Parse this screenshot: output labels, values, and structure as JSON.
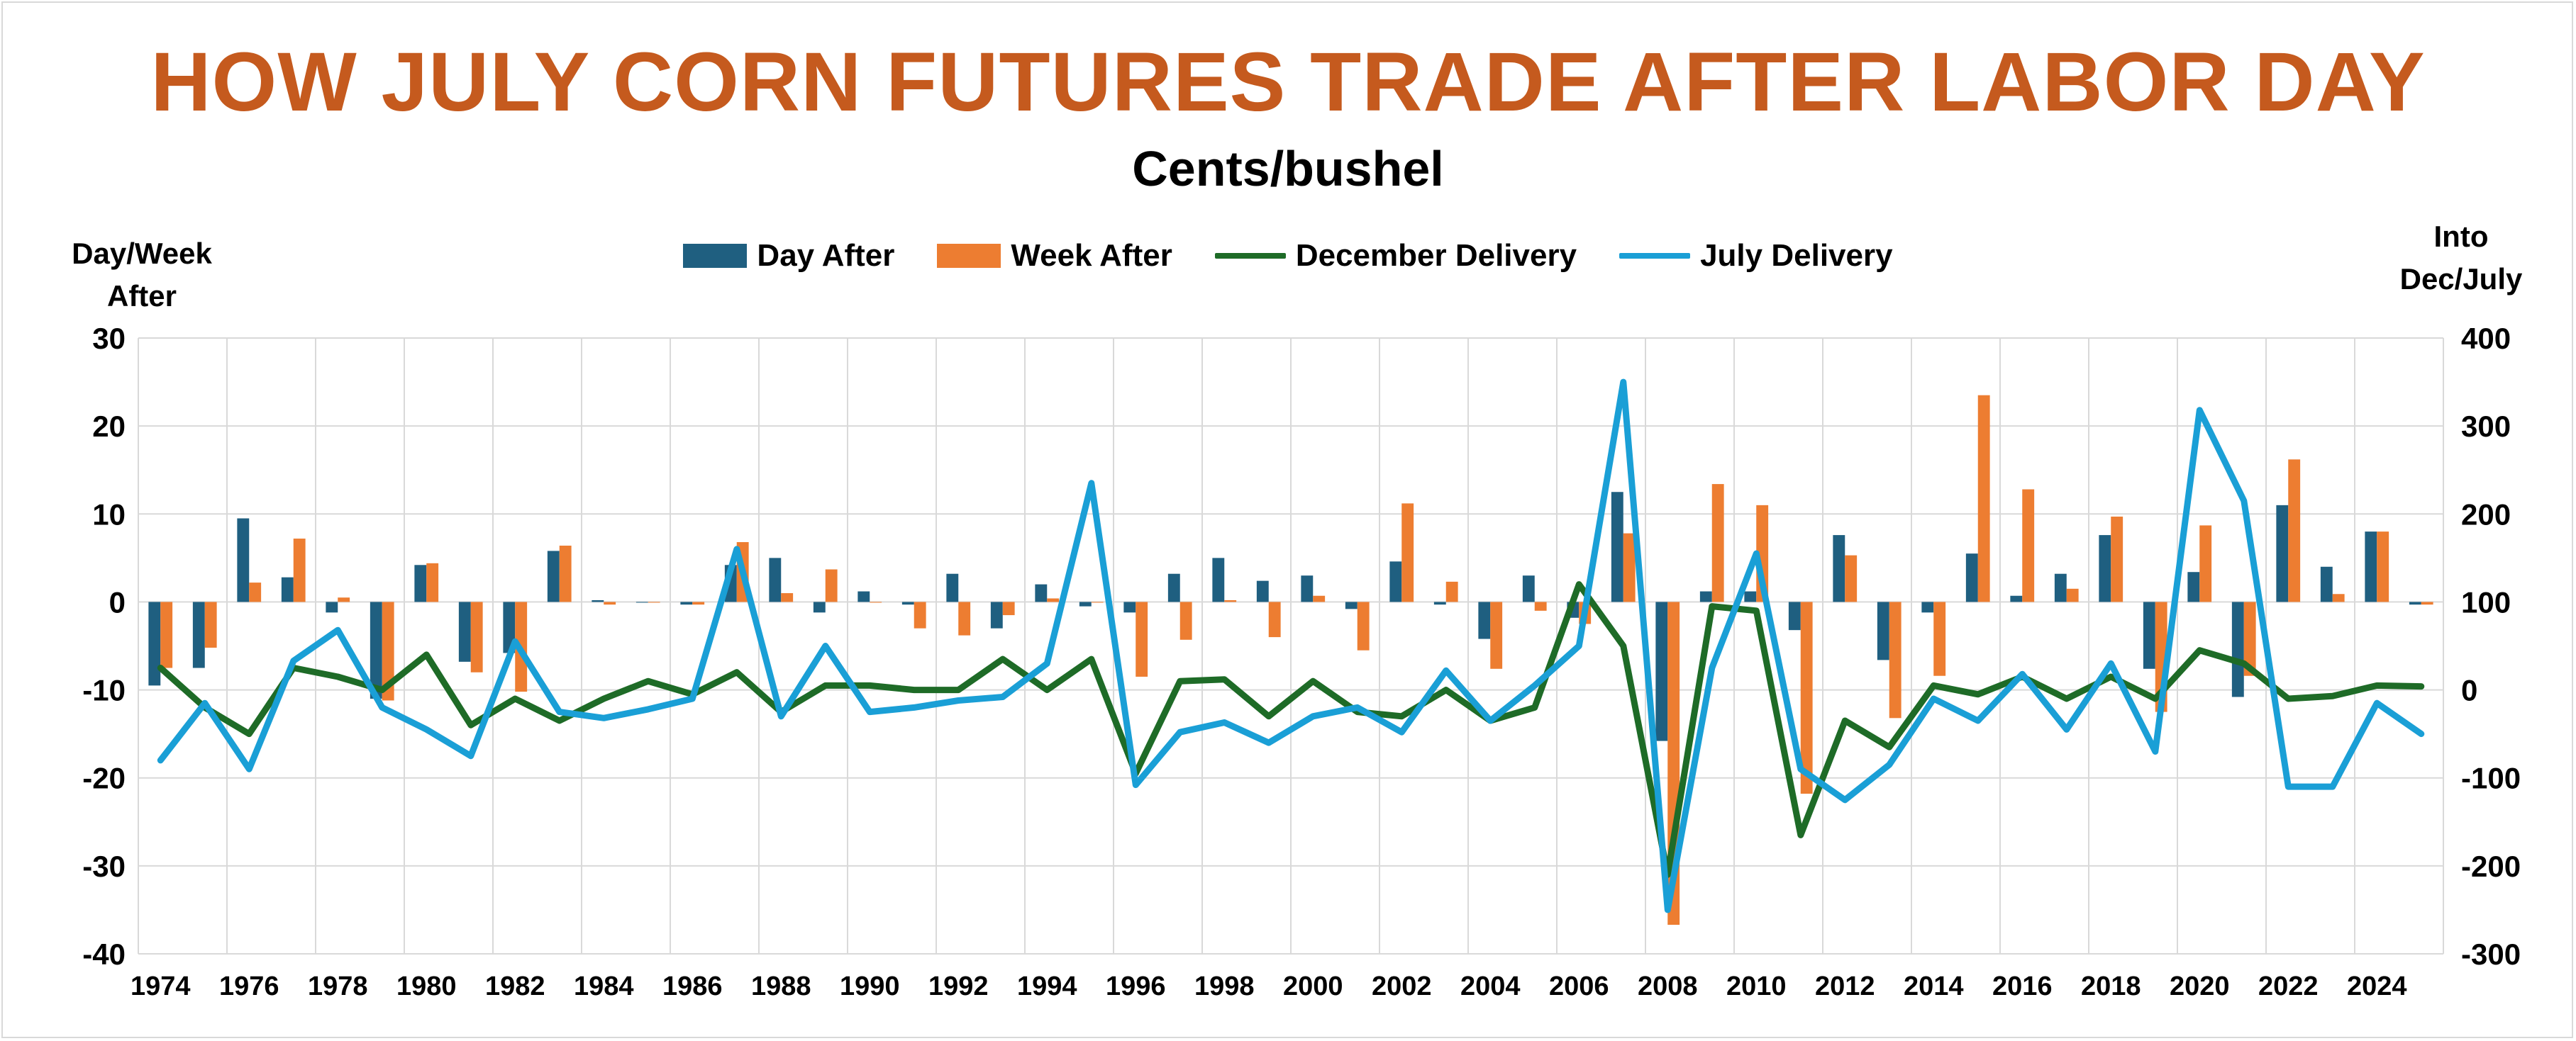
{
  "chart_data": {
    "type": "bar",
    "title": "HOW JULY CORN FUTURES TRADE AFTER LABOR DAY",
    "subtitle": "Cents/bushel",
    "ylabel_left": "Day/Week After",
    "ylabel_right": "Into Dec/July",
    "ylim_left": [
      -40,
      30
    ],
    "ylim_right": [
      -300,
      400
    ],
    "yticks_left": [
      30,
      20,
      10,
      0,
      -10,
      -20,
      -30,
      -40
    ],
    "yticks_right": [
      400,
      300,
      200,
      100,
      0,
      -100,
      -200,
      -300
    ],
    "grid": true,
    "legend_position": "top",
    "x": [
      1974,
      1975,
      1976,
      1977,
      1978,
      1979,
      1980,
      1981,
      1982,
      1983,
      1984,
      1985,
      1986,
      1987,
      1988,
      1989,
      1990,
      1991,
      1992,
      1993,
      1994,
      1995,
      1996,
      1997,
      1998,
      1999,
      2000,
      2001,
      2002,
      2003,
      2004,
      2005,
      2006,
      2007,
      2008,
      2009,
      2010,
      2011,
      2012,
      2013,
      2014,
      2015,
      2016,
      2017,
      2018,
      2019,
      2020,
      2021,
      2022,
      2023,
      2024,
      2025
    ],
    "xtick_labels": [
      "1974",
      "1976",
      "1978",
      "1980",
      "1982",
      "1984",
      "1986",
      "1988",
      "1990",
      "1992",
      "1994",
      "1996",
      "1998",
      "2000",
      "2002",
      "2004",
      "2006",
      "2008",
      "2010",
      "2012",
      "2014",
      "2016",
      "2018",
      "2020",
      "2022",
      "2024"
    ],
    "series": [
      {
        "name": "Day After",
        "type": "bar",
        "axis": "left",
        "color": "#1f5f80",
        "values": [
          -9.5,
          -7.5,
          9.5,
          2.8,
          -1.2,
          -11,
          4.2,
          -6.8,
          -5.8,
          5.8,
          0.2,
          0,
          -0.3,
          4.2,
          5,
          -1.2,
          1.2,
          -0.3,
          3.2,
          -3,
          2,
          -0.5,
          -1.2,
          3.2,
          5,
          2.4,
          3,
          -0.8,
          4.6,
          -0.3,
          -4.2,
          3,
          -1.8,
          12.5,
          -15.8,
          1.2,
          1.2,
          -3.2,
          7.6,
          -6.6,
          -1.2,
          5.5,
          0.7,
          3.2,
          7.6,
          -7.6,
          3.4,
          -10.8,
          11,
          4,
          8,
          -0.3
        ]
      },
      {
        "name": "Week After",
        "type": "bar",
        "axis": "left",
        "color": "#ed7d31",
        "values": [
          -7.5,
          -5.2,
          2.2,
          7.2,
          0.5,
          -11.2,
          4.4,
          -8,
          -10.2,
          6.4,
          -0.3,
          0,
          -0.3,
          6.8,
          1,
          3.7,
          0,
          -3,
          -3.8,
          -1.5,
          0.4,
          0,
          -8.5,
          -4.3,
          0.2,
          -4,
          0.7,
          -5.5,
          11.2,
          2.3,
          -7.6,
          -1,
          -2.5,
          7.8,
          -36.7,
          13.4,
          11,
          -21.8,
          5.3,
          -13.2,
          -8.4,
          23.5,
          12.8,
          1.5,
          9.7,
          -12.5,
          8.7,
          -8.4,
          16.2,
          0.9,
          8,
          -0.3
        ]
      },
      {
        "name": "December Delivery",
        "type": "line",
        "axis": "right",
        "color": "#1e6b27",
        "values": [
          25,
          -20,
          -50,
          25,
          15,
          0,
          40,
          -40,
          -10,
          -35,
          -10,
          10,
          -5,
          20,
          -25,
          5,
          5,
          0,
          0,
          35,
          0,
          35,
          -95,
          10,
          12,
          -30,
          10,
          -25,
          -30,
          0,
          -35,
          -20,
          120,
          50,
          -210,
          95,
          90,
          -165,
          -35,
          -65,
          5,
          -5,
          15,
          -10,
          15,
          -10,
          45,
          30,
          -10,
          -7,
          5,
          4
        ]
      },
      {
        "name": "July Delivery",
        "type": "line",
        "axis": "right",
        "color": "#1a9fd6",
        "values": [
          -80,
          -15,
          -90,
          33,
          68,
          -20,
          -45,
          -75,
          55,
          -25,
          -32,
          -22,
          -10,
          160,
          -30,
          50,
          -25,
          -20,
          -12,
          -8,
          30,
          235,
          -108,
          -48,
          -37,
          -60,
          -30,
          -20,
          -48,
          22,
          -35,
          5,
          50,
          350,
          -250,
          25,
          155,
          -90,
          -125,
          -85,
          -10,
          -35,
          18,
          -45,
          30,
          -70,
          318,
          215,
          -110,
          -110,
          -15,
          -50
        ]
      }
    ]
  }
}
